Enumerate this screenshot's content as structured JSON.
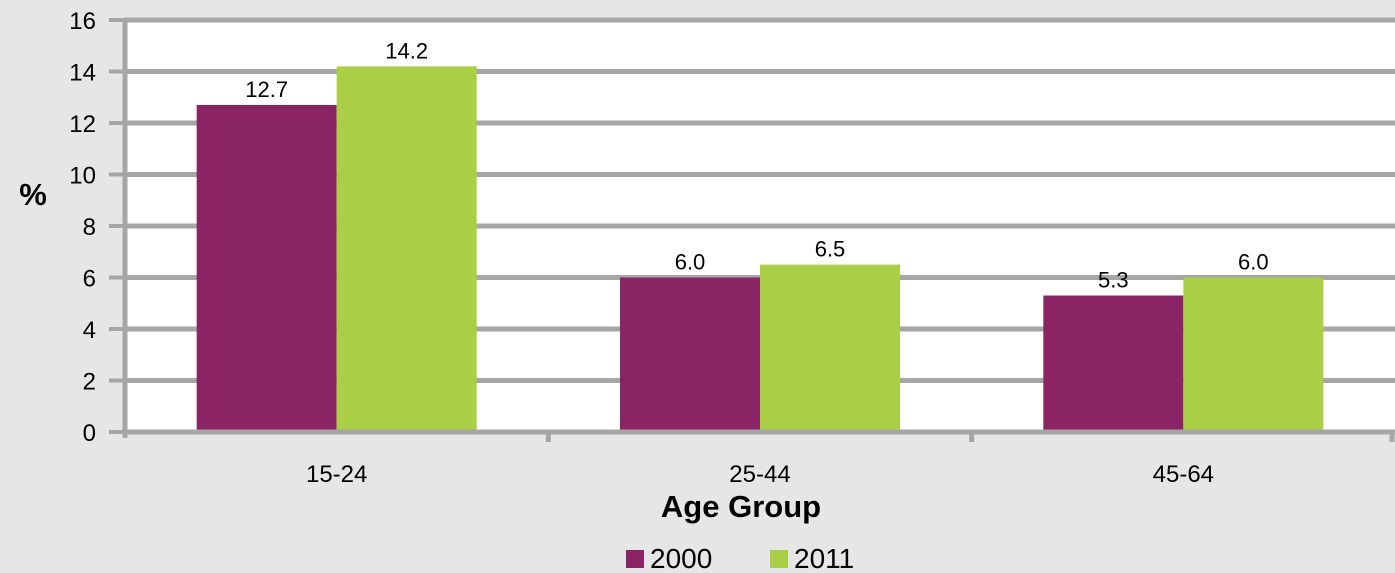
{
  "chart_data": {
    "type": "bar",
    "categories": [
      "15-24",
      "25-44",
      "45-64"
    ],
    "series": [
      {
        "name": "2000",
        "values": [
          12.7,
          6.0,
          5.3
        ],
        "labels": [
          "12.7",
          "6.0",
          "5.3"
        ],
        "color": "#8b2464"
      },
      {
        "name": "2011",
        "values": [
          14.2,
          6.5,
          6.0
        ],
        "labels": [
          "14.2",
          "6.5",
          "6.0"
        ],
        "color": "#aacf47"
      }
    ],
    "xlabel": "Age Group",
    "ylabel": "%",
    "ylim": [
      0,
      16
    ],
    "yticks": [
      "0",
      "2",
      "4",
      "6",
      "8",
      "10",
      "12",
      "14",
      "16"
    ],
    "grid": true,
    "gridColor": "#a6a6a6",
    "plotBackground": "#ffffff",
    "background": "#e6e6e6",
    "legend_position": "bottom"
  }
}
